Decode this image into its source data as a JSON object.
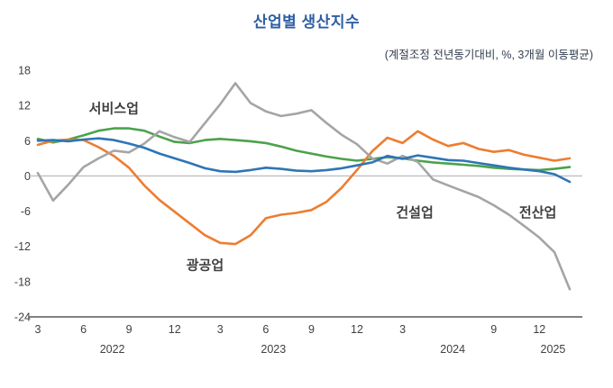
{
  "title": "산업별 생산지수",
  "subtitle": "(계절조정 전년동기대비, %, 3개월 이동평균)",
  "colors": {
    "title": "#2e5fa3",
    "subtitle": "#333f50",
    "axis_text": "#404040",
    "zero_line": "#c0c0c0",
    "axis_line": "#595959",
    "services": "#4ca24c",
    "mining": "#ed7d31",
    "construction": "#a5a5a5",
    "all": "#2e75b6"
  },
  "chart_data": {
    "type": "line",
    "title": "산업별 생산지수",
    "subtitle": "(계절조정 전년동기대비, %, 3개월 이동평균)",
    "x_months": [
      "2022-03",
      "2022-04",
      "2022-05",
      "2022-06",
      "2022-07",
      "2022-08",
      "2022-09",
      "2022-10",
      "2022-11",
      "2022-12",
      "2023-01",
      "2023-02",
      "2023-03",
      "2023-04",
      "2023-05",
      "2023-06",
      "2023-07",
      "2023-08",
      "2023-09",
      "2023-10",
      "2023-11",
      "2023-12",
      "2024-01",
      "2024-02",
      "2024-03",
      "2024-04",
      "2024-05",
      "2024-06",
      "2024-07",
      "2024-08",
      "2024-09",
      "2024-10",
      "2024-11",
      "2024-12",
      "2025-01",
      "2025-02"
    ],
    "ylim": [
      -24,
      18
    ],
    "yticks": [
      18,
      12,
      6,
      0,
      -6,
      -12,
      -18,
      -24
    ],
    "xticks": [
      {
        "label": "3",
        "i": 0
      },
      {
        "label": "6",
        "i": 3
      },
      {
        "label": "9",
        "i": 6
      },
      {
        "label": "12",
        "i": 9
      },
      {
        "label": "3",
        "i": 12
      },
      {
        "label": "6",
        "i": 15
      },
      {
        "label": "9",
        "i": 18
      },
      {
        "label": "12",
        "i": 21
      },
      {
        "label": "3",
        "i": 24
      },
      {
        "label": "9",
        "i": 30
      },
      {
        "label": "12",
        "i": 33
      }
    ],
    "year_labels": [
      {
        "label": "2022",
        "i": 4.9
      },
      {
        "label": "2023",
        "i": 15.5
      },
      {
        "label": "2024",
        "i": 27.3
      },
      {
        "label": "2025",
        "i": 33.9
      }
    ],
    "grid": "zero-line-only",
    "legend": "inline-annotations",
    "series": [
      {
        "name": "서비스업",
        "color_key": "services",
        "values": [
          6.3,
          5.7,
          6.2,
          6.9,
          7.7,
          8.1,
          8.1,
          7.7,
          6.7,
          5.8,
          5.6,
          6.1,
          6.3,
          6.1,
          5.9,
          5.6,
          5.0,
          4.3,
          3.8,
          3.3,
          2.9,
          2.6,
          2.9,
          3.2,
          3.0,
          2.6,
          2.3,
          2.1,
          1.9,
          1.7,
          1.4,
          1.2,
          1.1,
          1.0,
          1.2,
          1.5
        ]
      },
      {
        "name": "광공업",
        "color_key": "mining",
        "values": [
          5.3,
          6.0,
          6.2,
          6.1,
          4.9,
          3.4,
          1.4,
          -1.6,
          -4.1,
          -6.1,
          -8.1,
          -10.1,
          -11.4,
          -11.6,
          -10.1,
          -7.2,
          -6.6,
          -6.3,
          -5.8,
          -4.4,
          -2.0,
          1.0,
          4.2,
          6.5,
          5.6,
          7.6,
          6.2,
          5.1,
          5.6,
          4.6,
          4.1,
          4.4,
          3.6,
          3.1,
          2.6,
          3.0
        ]
      },
      {
        "name": "건설업",
        "color_key": "construction",
        "values": [
          0.5,
          -4.2,
          -1.5,
          1.5,
          3.0,
          4.3,
          4.0,
          5.5,
          7.6,
          6.6,
          5.8,
          9.0,
          12.2,
          15.8,
          12.4,
          11.0,
          10.2,
          10.6,
          11.2,
          9.0,
          7.0,
          5.4,
          3.0,
          2.1,
          3.4,
          2.4,
          -0.6,
          -1.6,
          -2.6,
          -3.6,
          -5.0,
          -6.6,
          -8.5,
          -10.5,
          -13.0,
          -19.3
        ]
      },
      {
        "name": "전산업",
        "color_key": "all",
        "values": [
          6.0,
          6.1,
          5.9,
          6.2,
          6.4,
          6.1,
          5.5,
          4.8,
          3.8,
          3.0,
          2.2,
          1.3,
          0.8,
          0.7,
          1.0,
          1.4,
          1.2,
          0.9,
          0.8,
          1.0,
          1.3,
          1.8,
          2.3,
          3.4,
          2.9,
          3.5,
          3.1,
          2.7,
          2.6,
          2.2,
          1.8,
          1.4,
          1.1,
          0.8,
          0.3,
          -1.0
        ]
      }
    ],
    "annotations": [
      {
        "text": "서비스업",
        "color_key": "services",
        "i": 5.0,
        "v": 11.5
      },
      {
        "text": "광공업",
        "color_key": "mining",
        "i": 11.0,
        "v": -15.2
      },
      {
        "text": "건설업",
        "color_key": "construction",
        "i": 24.8,
        "v": -6.2
      },
      {
        "text": "전산업",
        "color_key": "all",
        "i": 32.9,
        "v": -6.2
      }
    ]
  }
}
